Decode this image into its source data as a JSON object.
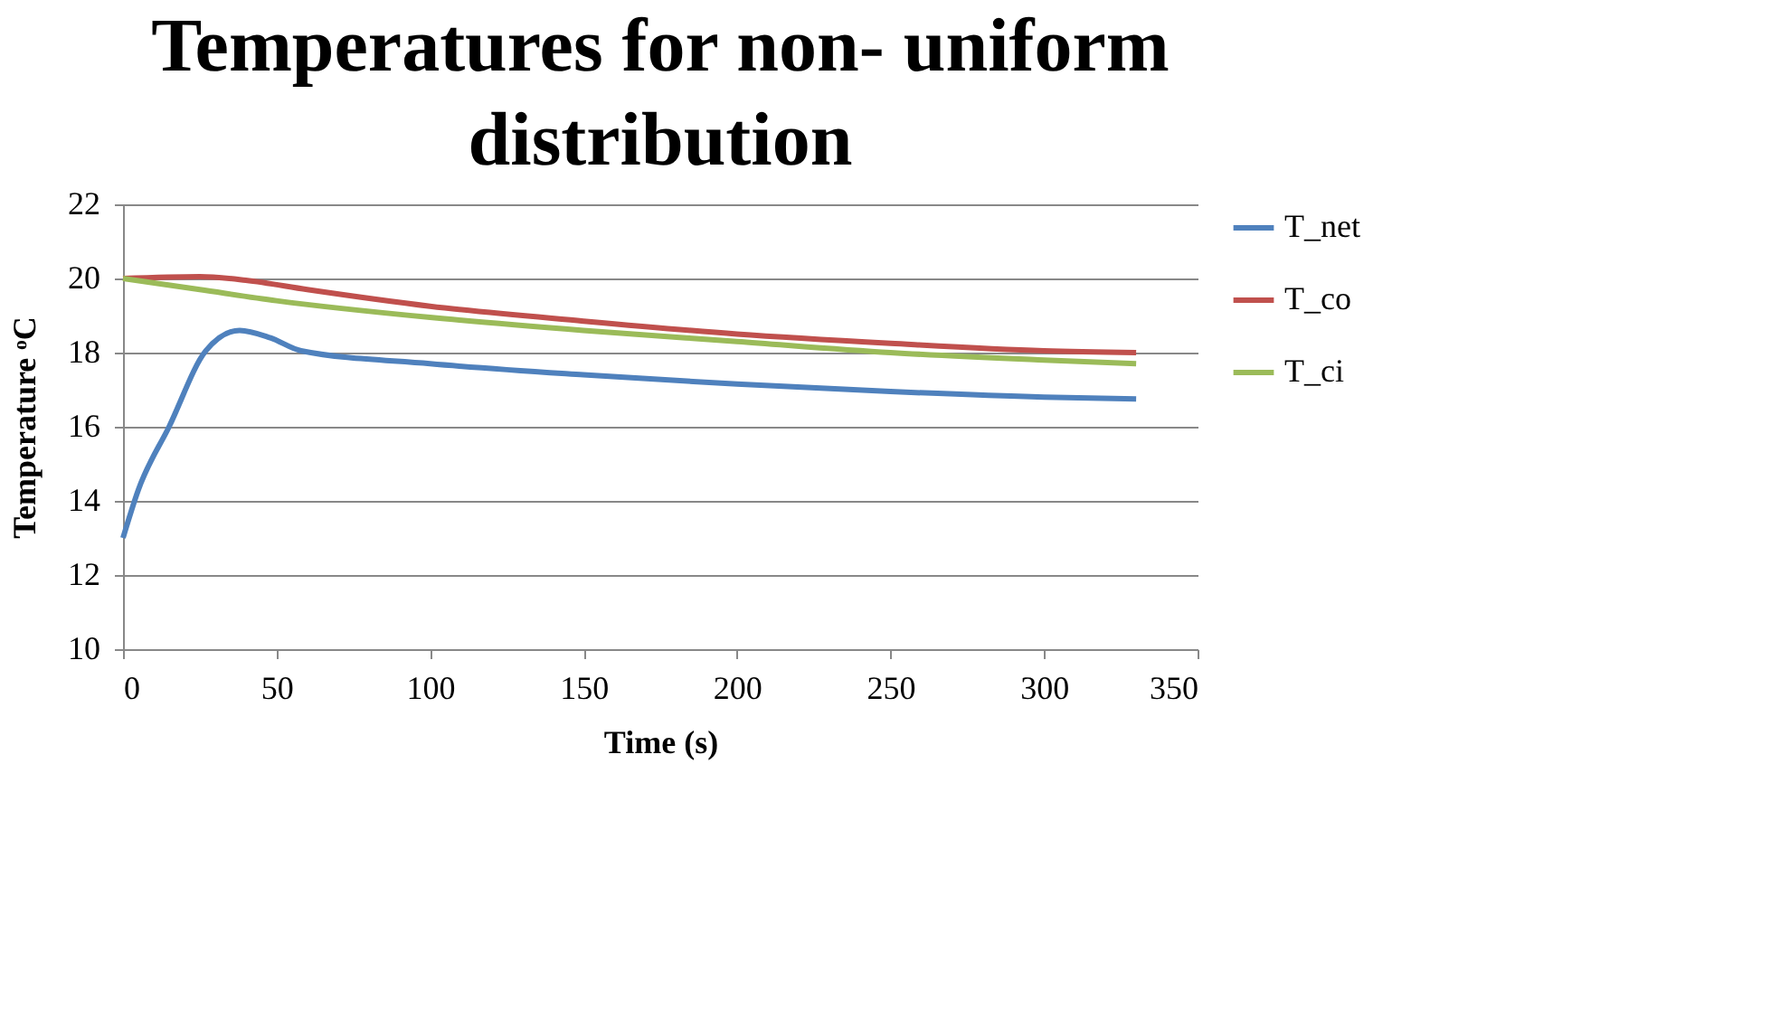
{
  "chart_data": {
    "type": "line",
    "title": "Temperatures for non- uniform distribution",
    "xlabel": "Time (s)",
    "ylabel": "Temperature ᵒC",
    "xlim": [
      0,
      350
    ],
    "xticks": [
      0,
      50,
      100,
      150,
      200,
      250,
      300,
      350
    ],
    "ylim": [
      10,
      22
    ],
    "yticks": [
      10,
      12,
      14,
      16,
      18,
      20,
      22
    ],
    "grid": "y",
    "legend": "right",
    "marker": "none",
    "line_style": "solid",
    "series": [
      {
        "name": "T_net",
        "color": "#4f81bd",
        "x": [
          0,
          5,
          15,
          27,
          38,
          48,
          58,
          100,
          150,
          200,
          250,
          300,
          330
        ],
        "values": [
          13,
          14.3,
          16,
          18.05,
          18.6,
          18.4,
          18.05,
          17.7,
          17.4,
          17.15,
          16.95,
          16.8,
          16.75
        ]
      },
      {
        "name": "T_co",
        "color": "#c0504d",
        "x": [
          0,
          25,
          40,
          60,
          100,
          150,
          200,
          250,
          300,
          330
        ],
        "values": [
          20,
          20.05,
          19.95,
          19.7,
          19.25,
          18.85,
          18.5,
          18.25,
          18.05,
          18.0
        ]
      },
      {
        "name": "T_ci",
        "color": "#9bbb59",
        "x": [
          0,
          25,
          50,
          100,
          150,
          200,
          250,
          300,
          330
        ],
        "values": [
          20,
          19.7,
          19.4,
          18.95,
          18.6,
          18.3,
          18.0,
          17.8,
          17.7
        ]
      }
    ]
  }
}
